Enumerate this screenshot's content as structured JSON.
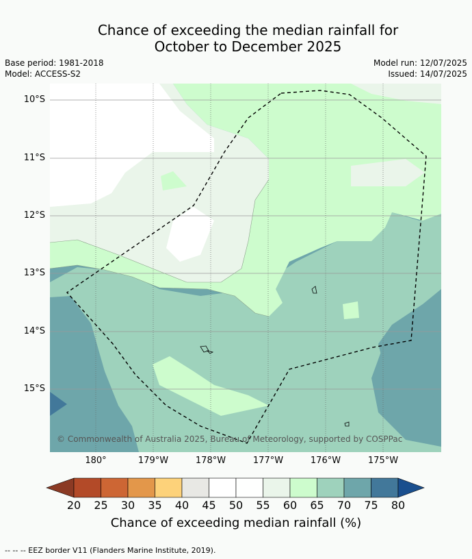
{
  "title_line1": "Chance of exceeding the median rainfall for",
  "title_line2": "October to December 2025",
  "base_period": "Base period: 1981-2018",
  "model": "Model: ACCESS-S2",
  "model_run": "Model run: 12/07/2025",
  "issued": "Issued: 14/07/2025",
  "lat_labels": [
    "10°S",
    "11°S",
    "12°S",
    "13°S",
    "14°S",
    "15°S"
  ],
  "lon_labels": [
    "180°",
    "179°W",
    "178°W",
    "177°W",
    "176°W",
    "175°W"
  ],
  "copyright": "© Commonwealth of Australia 2025, Bureau of Meteorology, supported by COSPPac",
  "colorbar": {
    "ticks": [
      "20",
      "25",
      "30",
      "35",
      "40",
      "45",
      "50",
      "55",
      "60",
      "65",
      "70",
      "75",
      "80"
    ],
    "colors": [
      "#8b3a24",
      "#b34a28",
      "#cd6634",
      "#e3974a",
      "#fdd27a",
      "#e8e8e4",
      "#ffffff",
      "#fefffe",
      "#eaf5ea",
      "#cdfccd",
      "#9ed2bc",
      "#6ea6aa",
      "#42789a",
      "#1a4f8e"
    ],
    "label": "Chance of exceeding median rainfall (%)"
  },
  "footnote": "--  --  -- EEZ border V11 (Flanders Marine Institute, 2019)."
}
